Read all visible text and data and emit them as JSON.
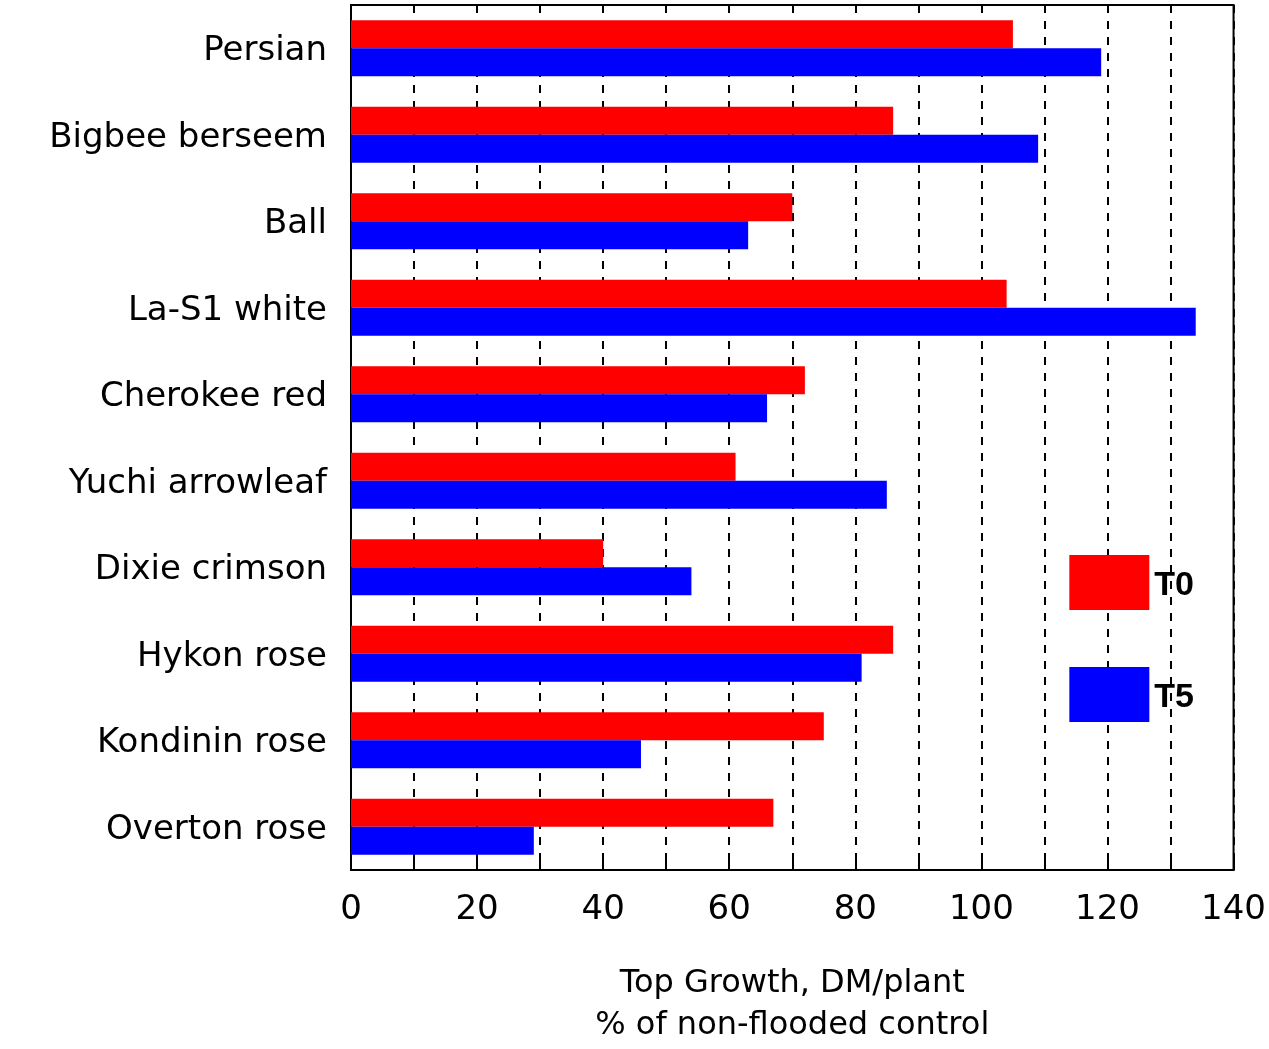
{
  "chart_data": {
    "type": "bar",
    "orientation": "horizontal",
    "xlabel": "Top Growth, DM/plant\n% of non-flooded control",
    "categories": [
      "Persian",
      "Bigbee berseem",
      "Ball",
      "La-S1 white",
      "Cherokee red",
      "Yuchi arrowleaf",
      "Dixie crimson",
      "Hykon rose",
      "Kondinin rose",
      "Overton rose"
    ],
    "series": [
      {
        "name": "T0",
        "color": "#ff0000",
        "values": [
          105,
          86,
          70,
          104,
          72,
          61,
          40,
          86,
          75,
          67
        ]
      },
      {
        "name": "T5",
        "color": "#0000ff",
        "values": [
          119,
          109,
          63,
          134,
          66,
          85,
          54,
          81,
          46,
          29
        ]
      }
    ],
    "xlim": [
      0,
      140
    ],
    "xticks": [
      0,
      {
        "value": 10,
        "label": null
      },
      20,
      {
        "value": 30,
        "label": null
      },
      40,
      {
        "value": 50,
        "label": null
      },
      60,
      {
        "value": 70,
        "label": null
      },
      80,
      {
        "value": 90,
        "label": null
      },
      100,
      {
        "value": 110,
        "label": null
      },
      120,
      {
        "value": 130,
        "label": null
      },
      140
    ],
    "grid": "x",
    "legend": "right"
  }
}
